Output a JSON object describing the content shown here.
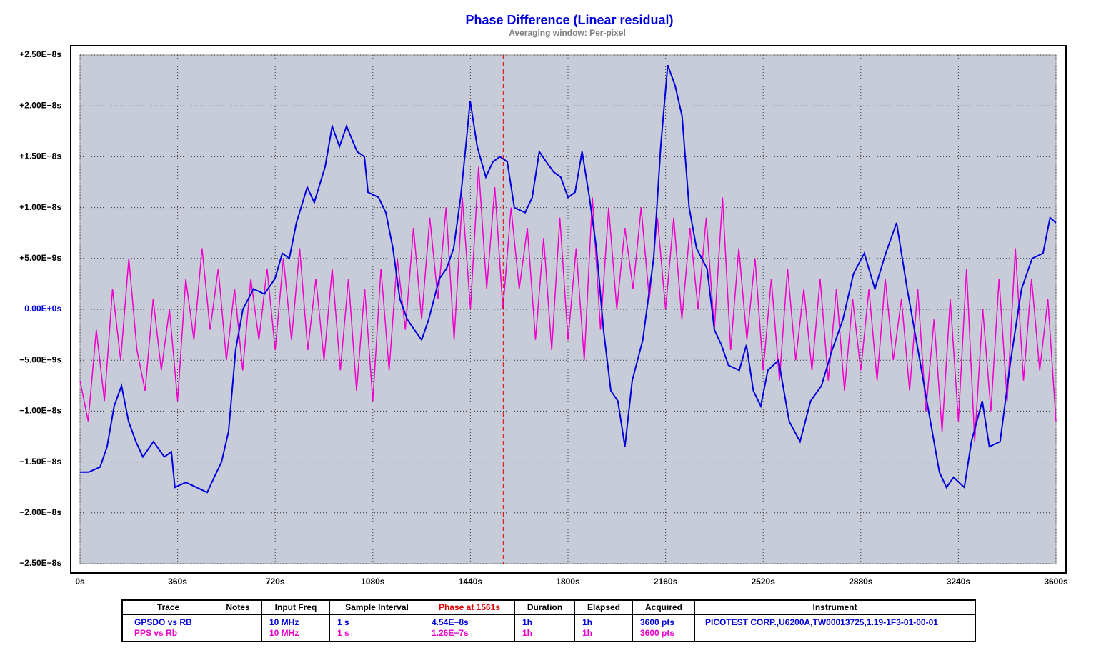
{
  "chart_data": {
    "type": "line",
    "title": "Phase Difference (Linear residual)",
    "subtitle": "Averaging window: Per-pixel",
    "xlim": [
      0,
      3600
    ],
    "xticks": [
      {
        "value": 0,
        "label": "0s"
      },
      {
        "value": 360,
        "label": "360s"
      },
      {
        "value": 720,
        "label": "720s"
      },
      {
        "value": 1080,
        "label": "1080s"
      },
      {
        "value": 1440,
        "label": "1440s"
      },
      {
        "value": 1800,
        "label": "1800s"
      },
      {
        "value": 2160,
        "label": "2160s"
      },
      {
        "value": 2520,
        "label": "2520s"
      },
      {
        "value": 2880,
        "label": "2880s"
      },
      {
        "value": 3240,
        "label": "3240s"
      },
      {
        "value": 3600,
        "label": "3600s"
      }
    ],
    "ylim": [
      -2.5e-08,
      2.5e-08
    ],
    "yticks": [
      {
        "value": 2.5e-08,
        "label": "+2.50E−8s"
      },
      {
        "value": 2e-08,
        "label": "+2.00E−8s"
      },
      {
        "value": 1.5e-08,
        "label": "+1.50E−8s"
      },
      {
        "value": 1e-08,
        "label": "+1.00E−8s"
      },
      {
        "value": 5e-09,
        "label": "+5.00E−9s"
      },
      {
        "value": 0,
        "label": "0.00E+0s"
      },
      {
        "value": -5e-09,
        "label": "−5.00E−9s"
      },
      {
        "value": -1e-08,
        "label": "−1.00E−8s"
      },
      {
        "value": -1.5e-08,
        "label": "−1.50E−8s"
      },
      {
        "value": -2e-08,
        "label": "−2.00E−8s"
      },
      {
        "value": -2.5e-08,
        "label": "−2.50E−8s"
      }
    ],
    "grid": true,
    "cursor": 1561,
    "cursor_color": "#dd0000",
    "series": [
      {
        "name": "PPS vs Rb",
        "color": "#ee00cc",
        "x": [
          0,
          30,
          60,
          90,
          120,
          150,
          180,
          210,
          240,
          270,
          300,
          330,
          360,
          390,
          420,
          450,
          480,
          510,
          540,
          570,
          600,
          630,
          660,
          690,
          720,
          750,
          780,
          810,
          840,
          870,
          900,
          930,
          960,
          990,
          1020,
          1050,
          1080,
          1110,
          1140,
          1170,
          1200,
          1230,
          1260,
          1290,
          1320,
          1350,
          1380,
          1410,
          1440,
          1470,
          1500,
          1530,
          1560,
          1590,
          1620,
          1650,
          1680,
          1710,
          1740,
          1770,
          1800,
          1830,
          1860,
          1890,
          1920,
          1950,
          1980,
          2010,
          2040,
          2070,
          2100,
          2130,
          2160,
          2190,
          2220,
          2250,
          2280,
          2310,
          2340,
          2370,
          2400,
          2430,
          2460,
          2490,
          2520,
          2550,
          2580,
          2610,
          2640,
          2670,
          2700,
          2730,
          2760,
          2790,
          2820,
          2850,
          2880,
          2910,
          2940,
          2970,
          3000,
          3030,
          3060,
          3090,
          3120,
          3150,
          3180,
          3210,
          3240,
          3270,
          3300,
          3330,
          3360,
          3390,
          3420,
          3450,
          3480,
          3510,
          3540,
          3570,
          3600
        ],
        "values": [
          -7e-09,
          -1.1e-08,
          -2e-09,
          -9e-09,
          2e-09,
          -5e-09,
          5e-09,
          -4e-09,
          -8e-09,
          1e-09,
          -6e-09,
          0.0,
          -9e-09,
          3e-09,
          -3e-09,
          6e-09,
          -2e-09,
          4e-09,
          -5e-09,
          2e-09,
          -6e-09,
          3e-09,
          -3e-09,
          4e-09,
          -4e-09,
          5e-09,
          -3e-09,
          6e-09,
          -4e-09,
          3e-09,
          -5e-09,
          4e-09,
          -6e-09,
          3e-09,
          -8e-09,
          2e-09,
          -9e-09,
          4e-09,
          -6e-09,
          5e-09,
          -2e-09,
          8e-09,
          -1e-09,
          9e-09,
          1e-09,
          1e-08,
          -3e-09,
          1.1e-08,
          0.0,
          1.4e-08,
          2e-09,
          1.2e-08,
          0.0,
          1e-08,
          2e-09,
          8e-09,
          -3e-09,
          7e-09,
          -4e-09,
          9e-09,
          -3e-09,
          6e-09,
          -5e-09,
          1.1e-08,
          -2e-09,
          1e-08,
          0.0,
          8e-09,
          2e-09,
          1e-08,
          1e-09,
          9e-09,
          0.0,
          9e-09,
          -1e-09,
          8e-09,
          0.0,
          9e-09,
          -2e-09,
          1.1e-08,
          -4e-09,
          6e-09,
          -3e-09,
          5e-09,
          -6e-09,
          3e-09,
          -7e-09,
          4e-09,
          -5e-09,
          2e-09,
          -6e-09,
          3e-09,
          -7e-09,
          2e-09,
          -8e-09,
          1e-09,
          -6e-09,
          2e-09,
          -7e-09,
          3e-09,
          -5e-09,
          1e-09,
          -8e-09,
          2e-09,
          -1e-08,
          -1e-09,
          -1.2e-08,
          1e-09,
          -1.1e-08,
          4e-09,
          -1.3e-08,
          0.0,
          -1e-08,
          3e-09,
          -9e-09,
          6e-09,
          -7e-09,
          3e-09,
          -6e-09,
          1e-09,
          -1.1e-08
        ]
      },
      {
        "name": "GPSDO vs RB",
        "color": "#0000dd",
        "x": [
          0,
          32,
          74,
          100,
          126,
          153,
          179,
          206,
          232,
          271,
          311,
          337,
          350,
          390,
          430,
          469,
          495,
          522,
          548,
          574,
          601,
          640,
          680,
          719,
          746,
          772,
          798,
          838,
          864,
          904,
          930,
          957,
          983,
          1022,
          1049,
          1062,
          1101,
          1128,
          1154,
          1180,
          1207,
          1233,
          1260,
          1286,
          1325,
          1352,
          1378,
          1404,
          1423,
          1439,
          1465,
          1497,
          1523,
          1549,
          1576,
          1602,
          1642,
          1668,
          1694,
          1720,
          1747,
          1773,
          1800,
          1826,
          1852,
          1879,
          1905,
          1931,
          1958,
          1984,
          2010,
          2037,
          2076,
          2116,
          2142,
          2168,
          2195,
          2221,
          2247,
          2274,
          2313,
          2340,
          2366,
          2392,
          2432,
          2458,
          2484,
          2511,
          2537,
          2577,
          2616,
          2656,
          2695,
          2735,
          2774,
          2814,
          2853,
          2893,
          2932,
          2972,
          3012,
          3051,
          3091,
          3130,
          3170,
          3196,
          3222,
          3262,
          3288,
          3328,
          3354,
          3394,
          3433,
          3473,
          3512,
          3552,
          3578,
          3600
        ],
        "values": [
          -1.6e-08,
          -1.6e-08,
          -1.55e-08,
          -1.35e-08,
          -9.5e-09,
          -7.5e-09,
          -1.1e-08,
          -1.3e-08,
          -1.45e-08,
          -1.3e-08,
          -1.45e-08,
          -1.4e-08,
          -1.75e-08,
          -1.7e-08,
          -1.75e-08,
          -1.8e-08,
          -1.65e-08,
          -1.5e-08,
          -1.2e-08,
          -4e-09,
          0.0,
          2e-09,
          1.5e-09,
          3e-09,
          5.5e-09,
          5e-09,
          8.5e-09,
          1.2e-08,
          1.05e-08,
          1.4e-08,
          1.8e-08,
          1.6e-08,
          1.8e-08,
          1.55e-08,
          1.5e-08,
          1.15e-08,
          1.1e-08,
          9.5e-09,
          6e-09,
          1e-09,
          -1e-09,
          -2e-09,
          -3e-09,
          -1e-09,
          3e-09,
          4e-09,
          6e-09,
          1.1e-08,
          1.6e-08,
          2.05e-08,
          1.6e-08,
          1.3e-08,
          1.45e-08,
          1.5e-08,
          1.45e-08,
          1e-08,
          9.5e-09,
          1.1e-08,
          1.55e-08,
          1.45e-08,
          1.35e-08,
          1.3e-08,
          1.1e-08,
          1.15e-08,
          1.55e-08,
          1.1e-08,
          6e-09,
          -2e-09,
          -8e-09,
          -9e-09,
          -1.35e-08,
          -7e-09,
          -3e-09,
          5e-09,
          1.6e-08,
          2.4e-08,
          2.2e-08,
          1.9e-08,
          1e-08,
          6e-09,
          4e-09,
          -2e-09,
          -3.5e-09,
          -5.5e-09,
          -6e-09,
          -3.5e-09,
          -8e-09,
          -9.5e-09,
          -6e-09,
          -5e-09,
          -1.1e-08,
          -1.3e-08,
          -9e-09,
          -7.5e-09,
          -4e-09,
          -1e-09,
          3.5e-09,
          5.5e-09,
          2e-09,
          5.5e-09,
          8.5e-09,
          2e-09,
          -4e-09,
          -1e-08,
          -1.6e-08,
          -1.75e-08,
          -1.65e-08,
          -1.75e-08,
          -1.3e-08,
          -9e-09,
          -1.35e-08,
          -1.3e-08,
          -5e-09,
          2e-09,
          5e-09,
          5.5e-09,
          9e-09,
          8.5e-09
        ]
      }
    ]
  },
  "table": {
    "columns": [
      "Trace",
      "Notes",
      "Input Freq",
      "Sample Interval",
      "Phase at 1561s",
      "Duration",
      "Elapsed",
      "Acquired",
      "Instrument"
    ],
    "rows": [
      {
        "trace": "GPSDO vs RB",
        "input_freq": "10 MHz",
        "sample_interval": "1 s",
        "phase": "4.54E−8s",
        "duration": "1h",
        "elapsed": "1h",
        "acquired": "3600 pts",
        "instrument": "PICOTEST  CORP.,U6200A,TW00013725,1.19-1F3-01-00-01"
      },
      {
        "trace": "PPS vs Rb",
        "input_freq": "10 MHz",
        "sample_interval": "1 s",
        "phase": "1.26E−7s",
        "duration": "1h",
        "elapsed": "1h",
        "acquired": "3600 pts"
      }
    ]
  }
}
